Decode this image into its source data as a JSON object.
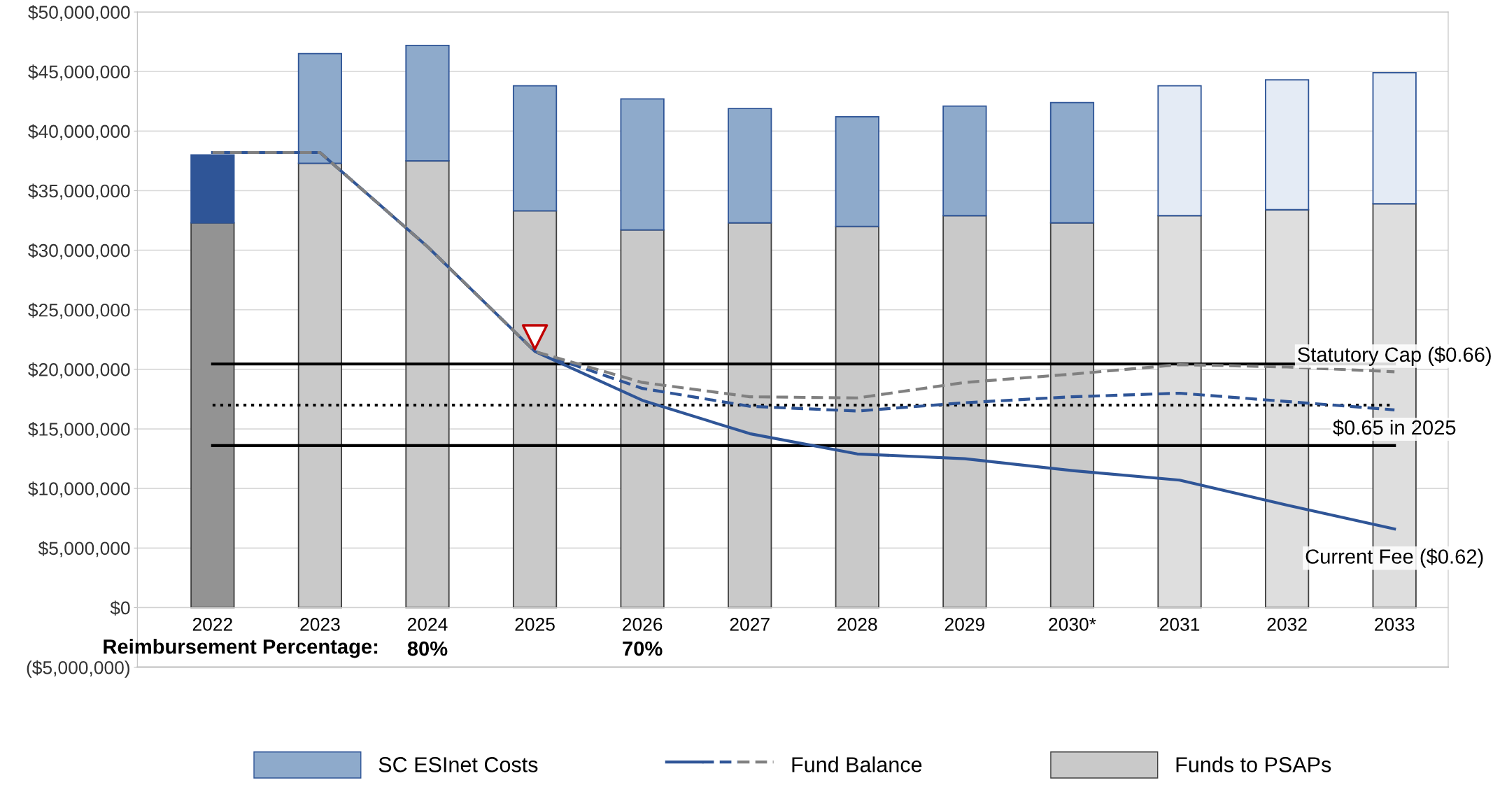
{
  "chart_data": {
    "type": "bar",
    "stacked": true,
    "categories": [
      "2022",
      "2023",
      "2024",
      "2025",
      "2026",
      "2027",
      "2028",
      "2029",
      "2030*",
      "2031",
      "2032",
      "2033"
    ],
    "series": [
      {
        "name": "Funds to PSAPs",
        "color": "#c9c9c9",
        "colors": [
          "#939393",
          "#c9c9c9",
          "#c9c9c9",
          "#c9c9c9",
          "#c9c9c9",
          "#c9c9c9",
          "#c9c9c9",
          "#c9c9c9",
          "#c9c9c9",
          "#dedede",
          "#dedede",
          "#dedede"
        ],
        "values": [
          32300000,
          37300000,
          37500000,
          33300000,
          31700000,
          32300000,
          32000000,
          32900000,
          32300000,
          32900000,
          33400000,
          33900000
        ]
      },
      {
        "name": "SC ESInet Costs",
        "color": "#8eaacb",
        "colors": [
          "#2f5597",
          "#8eaacb",
          "#8eaacb",
          "#8eaacb",
          "#8eaacb",
          "#8eaacb",
          "#8eaacb",
          "#8eaacb",
          "#8eaacb",
          "#e4ebf5",
          "#e4ebf5",
          "#e4ebf5"
        ],
        "values": [
          5700000,
          9200000,
          9700000,
          10500000,
          11000000,
          9600000,
          9200000,
          9200000,
          10100000,
          10900000,
          10900000,
          11000000
        ]
      },
      {
        "name": "Current Fee ($0.62)",
        "type": "line",
        "line_style": "solid",
        "color": "#2f5597",
        "values": [
          38200000,
          38200000,
          30300000,
          21500000,
          17400000,
          14600000,
          12900000,
          12500000,
          11500000,
          10700000,
          8600000,
          6600000
        ]
      },
      {
        "name": "$0.65 in 2025",
        "type": "line",
        "line_style": "dashed",
        "color": "#2f5597",
        "values": [
          38200000,
          38200000,
          30300000,
          21500000,
          18400000,
          16900000,
          16500000,
          17200000,
          17700000,
          18000000,
          17300000,
          16600000
        ]
      },
      {
        "name": "Statutory Cap ($0.66)",
        "type": "line",
        "line_style": "dashed",
        "color": "#808080",
        "values": [
          38200000,
          38200000,
          30300000,
          21500000,
          18900000,
          17700000,
          17600000,
          18900000,
          19600000,
          20400000,
          20200000,
          19800000
        ]
      },
      {
        "type": "scatter",
        "marker": "triangle",
        "color": "#c00000",
        "values": [
          null,
          null,
          null,
          22700000,
          null,
          null,
          null,
          null,
          null,
          null,
          null,
          null
        ]
      }
    ],
    "ylim": [
      -5000000,
      50000000
    ],
    "yticks": [
      {
        "value": -5000000,
        "label": "($5,000,000)"
      },
      {
        "value": 0,
        "label": "$0"
      },
      {
        "value": 5000000,
        "label": "$5,000,000"
      },
      {
        "value": 10000000,
        "label": "$10,000,000"
      },
      {
        "value": 15000000,
        "label": "$15,000,000"
      },
      {
        "value": 20000000,
        "label": "$20,000,000"
      },
      {
        "value": 25000000,
        "label": "$25,000,000"
      },
      {
        "value": 30000000,
        "label": "$30,000,000"
      },
      {
        "value": 35000000,
        "label": "$35,000,000"
      },
      {
        "value": 40000000,
        "label": "$40,000,000"
      },
      {
        "value": 45000000,
        "label": "$45,000,000"
      },
      {
        "value": 50000000,
        "label": "$50,000,000"
      }
    ],
    "ref_lines": [
      {
        "axis": "y",
        "value": 20450000,
        "color": "#000000",
        "line_style": "solid"
      },
      {
        "axis": "y",
        "value": 17000000,
        "color": "#000000",
        "line_style": "dotted"
      },
      {
        "axis": "y",
        "value": 13600000,
        "color": "#000000",
        "line_style": "solid"
      }
    ],
    "annotations": [
      "Reimbursement Percentage:",
      "Fund Balance",
      "80%",
      "70%"
    ],
    "grid": "y",
    "legend": "bottom"
  }
}
